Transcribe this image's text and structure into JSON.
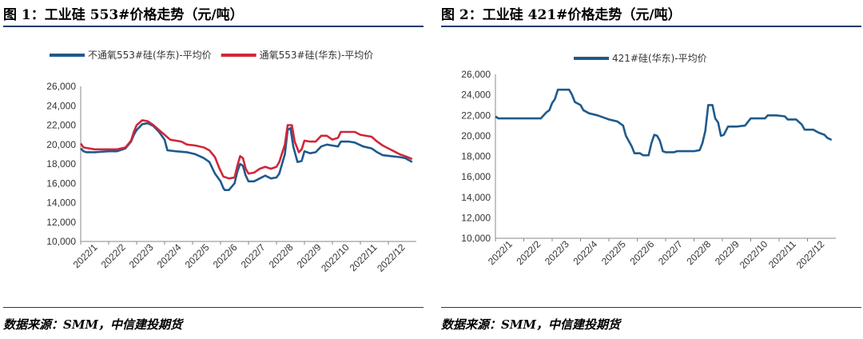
{
  "figures": [
    {
      "title": "图 1：工业硅 553#价格走势（元/吨）",
      "source": "数据来源：SMM，中信建投期货"
    },
    {
      "title": "图 2：工业硅 421#价格走势（元/吨）",
      "source": "数据来源：SMM，中信建投期货"
    }
  ],
  "chart_data": [
    {
      "type": "line",
      "title": "图 1：工业硅 553#价格走势（元/吨）",
      "ylim": [
        10000,
        26000
      ],
      "yticks": [
        "10,000",
        "12,000",
        "14,000",
        "16,000",
        "18,000",
        "20,000",
        "22,000",
        "24,000",
        "26,000"
      ],
      "xticks": [
        "2022/1",
        "2022/2",
        "2022/3",
        "2022/4",
        "2022/5",
        "2022/6",
        "2022/7",
        "2022/8",
        "2022/9",
        "2022/10",
        "2022/11",
        "2022/12"
      ],
      "legend_position": "top",
      "series": [
        {
          "name": "不通氧553#硅(华东)-平均价",
          "color": "#1f5a8c",
          "values": [
            [
              0,
              19600
            ],
            [
              0.1,
              19300
            ],
            [
              0.2,
              19200
            ],
            [
              0.5,
              19200
            ],
            [
              1,
              19300
            ],
            [
              1.3,
              19300
            ],
            [
              1.6,
              19600
            ],
            [
              1.8,
              20300
            ],
            [
              1.9,
              21000
            ],
            [
              2.0,
              21500
            ],
            [
              2.2,
              22100
            ],
            [
              2.4,
              22200
            ],
            [
              2.6,
              21900
            ],
            [
              2.8,
              21300
            ],
            [
              3.0,
              20500
            ],
            [
              3.1,
              19400
            ],
            [
              3.4,
              19300
            ],
            [
              3.8,
              19200
            ],
            [
              4.1,
              19000
            ],
            [
              4.4,
              18600
            ],
            [
              4.6,
              18200
            ],
            [
              4.8,
              17000
            ],
            [
              5.0,
              16200
            ],
            [
              5.1,
              15500
            ],
            [
              5.15,
              15300
            ],
            [
              5.3,
              15300
            ],
            [
              5.5,
              16000
            ],
            [
              5.6,
              17200
            ],
            [
              5.7,
              18000
            ],
            [
              5.8,
              17800
            ],
            [
              5.9,
              16800
            ],
            [
              6.0,
              16200
            ],
            [
              6.2,
              16200
            ],
            [
              6.4,
              16500
            ],
            [
              6.6,
              16800
            ],
            [
              6.8,
              16500
            ],
            [
              7.0,
              16600
            ],
            [
              7.1,
              17000
            ],
            [
              7.3,
              19000
            ],
            [
              7.4,
              21500
            ],
            [
              7.5,
              21700
            ],
            [
              7.6,
              19800
            ],
            [
              7.75,
              18200
            ],
            [
              7.9,
              18300
            ],
            [
              8.0,
              19300
            ],
            [
              8.2,
              19100
            ],
            [
              8.4,
              19200
            ],
            [
              8.6,
              19800
            ],
            [
              8.8,
              20000
            ],
            [
              9.0,
              19900
            ],
            [
              9.2,
              19800
            ],
            [
              9.3,
              20300
            ],
            [
              9.6,
              20300
            ],
            [
              9.8,
              20200
            ],
            [
              10.1,
              19800
            ],
            [
              10.4,
              19600
            ],
            [
              10.6,
              19200
            ],
            [
              10.8,
              18900
            ],
            [
              11.1,
              18800
            ],
            [
              11.4,
              18700
            ],
            [
              11.6,
              18600
            ],
            [
              11.85,
              18200
            ]
          ]
        },
        {
          "name": "通氧553#硅(华东)-平均价",
          "color": "#d0273a",
          "values": [
            [
              0,
              20100
            ],
            [
              0.1,
              19700
            ],
            [
              0.3,
              19600
            ],
            [
              0.5,
              19500
            ],
            [
              1,
              19500
            ],
            [
              1.3,
              19500
            ],
            [
              1.6,
              19700
            ],
            [
              1.8,
              20400
            ],
            [
              1.9,
              21300
            ],
            [
              2.0,
              22000
            ],
            [
              2.2,
              22500
            ],
            [
              2.4,
              22400
            ],
            [
              2.6,
              22000
            ],
            [
              2.8,
              21500
            ],
            [
              3.0,
              21000
            ],
            [
              3.2,
              20500
            ],
            [
              3.6,
              20300
            ],
            [
              3.8,
              20000
            ],
            [
              4.1,
              19900
            ],
            [
              4.4,
              19700
            ],
            [
              4.6,
              19400
            ],
            [
              4.8,
              18700
            ],
            [
              4.95,
              17600
            ],
            [
              5.1,
              16700
            ],
            [
              5.3,
              16500
            ],
            [
              5.5,
              16600
            ],
            [
              5.6,
              17800
            ],
            [
              5.7,
              18800
            ],
            [
              5.8,
              18600
            ],
            [
              5.9,
              17500
            ],
            [
              6.0,
              17000
            ],
            [
              6.2,
              17100
            ],
            [
              6.4,
              17500
            ],
            [
              6.6,
              17700
            ],
            [
              6.8,
              17500
            ],
            [
              7.0,
              17700
            ],
            [
              7.1,
              18200
            ],
            [
              7.3,
              20000
            ],
            [
              7.4,
              22000
            ],
            [
              7.55,
              22000
            ],
            [
              7.65,
              20300
            ],
            [
              7.8,
              19200
            ],
            [
              7.9,
              19500
            ],
            [
              8.0,
              20400
            ],
            [
              8.2,
              20300
            ],
            [
              8.4,
              20300
            ],
            [
              8.6,
              20900
            ],
            [
              8.8,
              20900
            ],
            [
              9.0,
              20500
            ],
            [
              9.2,
              20700
            ],
            [
              9.3,
              21300
            ],
            [
              9.6,
              21300
            ],
            [
              9.8,
              21300
            ],
            [
              10.0,
              21000
            ],
            [
              10.4,
              20800
            ],
            [
              10.6,
              20300
            ],
            [
              10.8,
              19900
            ],
            [
              11.0,
              19600
            ],
            [
              11.2,
              19300
            ],
            [
              11.4,
              19000
            ],
            [
              11.6,
              18800
            ],
            [
              11.85,
              18500
            ]
          ]
        }
      ]
    },
    {
      "type": "line",
      "title": "图 2：工业硅 421#价格走势（元/吨）",
      "ylim": [
        10000,
        26000
      ],
      "yticks": [
        "10,000",
        "12,000",
        "14,000",
        "16,000",
        "18,000",
        "20,000",
        "22,000",
        "24,000",
        "26,000"
      ],
      "xticks": [
        "2022/1",
        "2022/2",
        "2022/3",
        "2022/4",
        "2022/5",
        "2022/6",
        "2022/7",
        "2022/8",
        "2022/9",
        "2022/10",
        "2022/11",
        "2022/12"
      ],
      "legend_position": "top",
      "series": [
        {
          "name": "421#硅(华东)-平均价",
          "color": "#1f5a8c",
          "values": [
            [
              0,
              21900
            ],
            [
              0.1,
              21700
            ],
            [
              0.5,
              21700
            ],
            [
              1,
              21700
            ],
            [
              1.6,
              21700
            ],
            [
              1.8,
              22300
            ],
            [
              1.9,
              22500
            ],
            [
              2.0,
              23200
            ],
            [
              2.1,
              23600
            ],
            [
              2.2,
              24500
            ],
            [
              2.4,
              24500
            ],
            [
              2.6,
              24500
            ],
            [
              2.7,
              24000
            ],
            [
              2.8,
              23300
            ],
            [
              3.0,
              23000
            ],
            [
              3.1,
              22500
            ],
            [
              3.3,
              22200
            ],
            [
              3.6,
              22000
            ],
            [
              3.8,
              21800
            ],
            [
              4.0,
              21600
            ],
            [
              4.3,
              21400
            ],
            [
              4.5,
              21000
            ],
            [
              4.6,
              20000
            ],
            [
              4.8,
              19000
            ],
            [
              4.9,
              18300
            ],
            [
              5.1,
              18300
            ],
            [
              5.2,
              18100
            ],
            [
              5.4,
              18100
            ],
            [
              5.5,
              19300
            ],
            [
              5.6,
              20100
            ],
            [
              5.7,
              20000
            ],
            [
              5.8,
              19500
            ],
            [
              5.9,
              18500
            ],
            [
              6.0,
              18400
            ],
            [
              6.3,
              18400
            ],
            [
              6.4,
              18500
            ],
            [
              6.8,
              18500
            ],
            [
              7.0,
              18500
            ],
            [
              7.2,
              18600
            ],
            [
              7.3,
              19300
            ],
            [
              7.4,
              20500
            ],
            [
              7.5,
              23000
            ],
            [
              7.65,
              23000
            ],
            [
              7.75,
              21700
            ],
            [
              7.85,
              21300
            ],
            [
              7.95,
              20000
            ],
            [
              8.05,
              20100
            ],
            [
              8.2,
              20900
            ],
            [
              8.5,
              20900
            ],
            [
              8.8,
              21000
            ],
            [
              9.0,
              21700
            ],
            [
              9.3,
              21700
            ],
            [
              9.5,
              21700
            ],
            [
              9.6,
              22000
            ],
            [
              9.9,
              22000
            ],
            [
              10.2,
              21900
            ],
            [
              10.3,
              21600
            ],
            [
              10.6,
              21600
            ],
            [
              10.8,
              21100
            ],
            [
              10.9,
              20600
            ],
            [
              11.2,
              20600
            ],
            [
              11.4,
              20300
            ],
            [
              11.6,
              20100
            ],
            [
              11.7,
              19800
            ],
            [
              11.85,
              19600
            ]
          ]
        }
      ]
    }
  ]
}
